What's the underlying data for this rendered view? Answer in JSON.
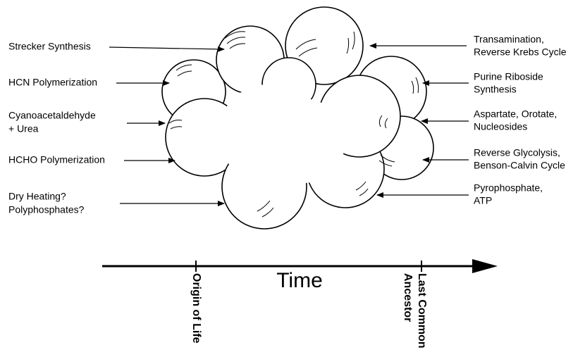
{
  "left_labels": [
    {
      "lines": [
        "Strecker Synthesis"
      ]
    },
    {
      "lines": [
        "HCN Polymerization"
      ]
    },
    {
      "lines": [
        "Cyanoacetaldehyde",
        "+ Urea"
      ]
    },
    {
      "lines": [
        "HCHO Polymerization"
      ]
    },
    {
      "lines": [
        "Dry Heating?",
        "Polyphosphates?"
      ]
    }
  ],
  "right_labels": [
    {
      "lines": [
        "Transamination,",
        "Reverse Krebs Cycle"
      ]
    },
    {
      "lines": [
        "Purine Riboside",
        "Synthesis"
      ]
    },
    {
      "lines": [
        "Aspartate, Orotate,",
        "Nucleosides"
      ]
    },
    {
      "lines": [
        "Reverse Glycolysis,",
        "Benson-Calvin Cycle"
      ]
    },
    {
      "lines": [
        "Pyrophosphate,",
        "ATP"
      ]
    }
  ],
  "timeline": {
    "label": "Time",
    "markers": [
      {
        "lines": [
          "Origin of Life"
        ]
      },
      {
        "lines": [
          "Last Common",
          "Ancestor"
        ]
      }
    ]
  }
}
